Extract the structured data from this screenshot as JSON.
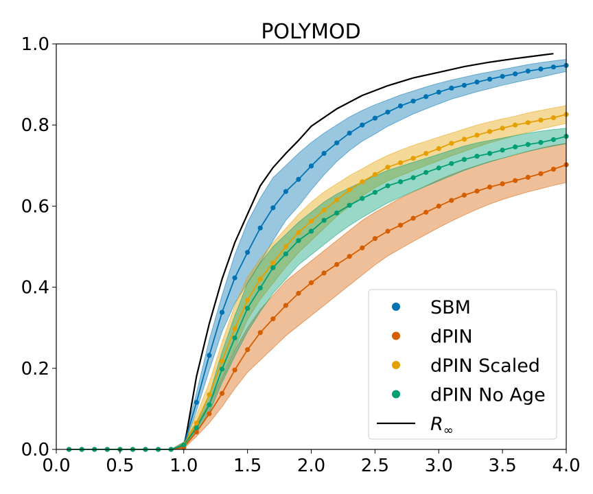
{
  "chart_data": {
    "type": "line",
    "title": "POLYMOD",
    "xlabel": "",
    "ylabel": "",
    "xlim": [
      0.0,
      4.0
    ],
    "ylim": [
      0.0,
      1.0
    ],
    "xticks": [
      "0.0",
      "0.5",
      "1.0",
      "1.5",
      "2.0",
      "2.5",
      "3.0",
      "3.5",
      "4.0"
    ],
    "yticks": [
      "0.0",
      "0.2",
      "0.4",
      "0.6",
      "0.8",
      "1.0"
    ],
    "grid": false,
    "legend_position": "lower-right",
    "x": [
      0.1,
      0.2,
      0.3,
      0.4,
      0.5,
      0.6,
      0.7,
      0.8,
      0.9,
      1.0,
      1.1,
      1.2,
      1.3,
      1.4,
      1.5,
      1.6,
      1.7,
      1.8,
      1.9,
      2.0,
      2.1,
      2.2,
      2.3,
      2.4,
      2.5,
      2.6,
      2.7,
      2.8,
      2.9,
      3.0,
      3.1,
      3.2,
      3.3,
      3.4,
      3.5,
      3.6,
      3.7,
      3.8,
      3.9,
      4.0
    ],
    "series": [
      {
        "name": "SBM",
        "color": "#0072b2",
        "values": [
          0,
          0,
          0,
          0,
          0,
          0,
          0,
          0,
          0,
          0.01,
          0.116,
          0.232,
          0.338,
          0.423,
          0.486,
          0.546,
          0.596,
          0.636,
          0.666,
          0.699,
          0.73,
          0.756,
          0.78,
          0.8,
          0.817,
          0.832,
          0.847,
          0.859,
          0.87,
          0.881,
          0.891,
          0.898,
          0.906,
          0.913,
          0.92,
          0.926,
          0.933,
          0.938,
          0.943,
          0.947
        ],
        "lower": [
          0,
          0,
          0,
          0,
          0,
          0,
          0,
          0,
          0,
          0.004,
          0.095,
          0.195,
          0.29,
          0.36,
          0.41,
          0.46,
          0.515,
          0.565,
          0.6,
          0.64,
          0.677,
          0.71,
          0.737,
          0.76,
          0.778,
          0.797,
          0.812,
          0.827,
          0.84,
          0.852,
          0.864,
          0.873,
          0.882,
          0.89,
          0.898,
          0.905,
          0.912,
          0.918,
          0.925,
          0.932
        ],
        "upper": [
          0,
          0,
          0,
          0,
          0,
          0,
          0,
          0,
          0,
          0.018,
          0.14,
          0.27,
          0.38,
          0.48,
          0.56,
          0.62,
          0.67,
          0.7,
          0.73,
          0.757,
          0.78,
          0.8,
          0.82,
          0.836,
          0.85,
          0.862,
          0.874,
          0.884,
          0.894,
          0.903,
          0.911,
          0.918,
          0.925,
          0.931,
          0.937,
          0.943,
          0.949,
          0.954,
          0.958,
          0.962
        ]
      },
      {
        "name": "dPIN",
        "color": "#d55e00",
        "values": [
          0,
          0,
          0,
          0,
          0,
          0,
          0,
          0,
          0,
          0.005,
          0.043,
          0.088,
          0.138,
          0.196,
          0.246,
          0.288,
          0.322,
          0.355,
          0.385,
          0.411,
          0.435,
          0.456,
          0.476,
          0.497,
          0.52,
          0.538,
          0.553,
          0.57,
          0.585,
          0.6,
          0.614,
          0.627,
          0.637,
          0.647,
          0.655,
          0.663,
          0.671,
          0.68,
          0.691,
          0.702
        ],
        "lower": [
          0,
          0,
          0,
          0,
          0,
          0,
          0,
          0,
          0,
          0.002,
          0.032,
          0.065,
          0.105,
          0.15,
          0.19,
          0.22,
          0.25,
          0.28,
          0.305,
          0.33,
          0.355,
          0.38,
          0.405,
          0.43,
          0.455,
          0.477,
          0.495,
          0.513,
          0.53,
          0.547,
          0.563,
          0.578,
          0.592,
          0.605,
          0.616,
          0.626,
          0.635,
          0.643,
          0.651,
          0.658
        ],
        "upper": [
          0,
          0,
          0,
          0,
          0,
          0,
          0,
          0,
          0,
          0.01,
          0.06,
          0.115,
          0.175,
          0.245,
          0.3,
          0.345,
          0.38,
          0.415,
          0.44,
          0.465,
          0.49,
          0.515,
          0.54,
          0.565,
          0.585,
          0.602,
          0.62,
          0.635,
          0.65,
          0.665,
          0.678,
          0.69,
          0.7,
          0.71,
          0.718,
          0.726,
          0.735,
          0.743,
          0.75,
          0.755
        ]
      },
      {
        "name": "dPIN Scaled",
        "color": "#e69f00",
        "values": [
          0,
          0,
          0,
          0,
          0,
          0,
          0,
          0,
          0,
          0.012,
          0.065,
          0.135,
          0.218,
          0.298,
          0.368,
          0.42,
          0.46,
          0.5,
          0.535,
          0.563,
          0.59,
          0.615,
          0.64,
          0.66,
          0.678,
          0.696,
          0.707,
          0.718,
          0.73,
          0.742,
          0.755,
          0.765,
          0.775,
          0.784,
          0.792,
          0.8,
          0.806,
          0.812,
          0.818,
          0.826
        ],
        "lower": [
          0,
          0,
          0,
          0,
          0,
          0,
          0,
          0,
          0,
          0.006,
          0.05,
          0.11,
          0.18,
          0.25,
          0.32,
          0.37,
          0.41,
          0.45,
          0.485,
          0.515,
          0.545,
          0.575,
          0.6,
          0.625,
          0.645,
          0.662,
          0.675,
          0.688,
          0.7,
          0.712,
          0.724,
          0.735,
          0.746,
          0.756,
          0.765,
          0.774,
          0.782,
          0.79,
          0.797,
          0.804
        ],
        "upper": [
          0,
          0,
          0,
          0,
          0,
          0,
          0,
          0,
          0,
          0.018,
          0.085,
          0.165,
          0.265,
          0.355,
          0.425,
          0.47,
          0.51,
          0.545,
          0.58,
          0.61,
          0.635,
          0.655,
          0.675,
          0.692,
          0.71,
          0.725,
          0.738,
          0.75,
          0.76,
          0.77,
          0.78,
          0.79,
          0.8,
          0.808,
          0.815,
          0.822,
          0.83,
          0.836,
          0.842,
          0.848
        ]
      },
      {
        "name": "dPIN No Age",
        "color": "#009e73",
        "values": [
          0,
          0,
          0,
          0,
          0,
          0,
          0,
          0,
          0,
          0.011,
          0.053,
          0.11,
          0.198,
          0.275,
          0.348,
          0.398,
          0.448,
          0.482,
          0.515,
          0.538,
          0.565,
          0.583,
          0.602,
          0.619,
          0.634,
          0.65,
          0.66,
          0.67,
          0.683,
          0.694,
          0.705,
          0.715,
          0.723,
          0.73,
          0.738,
          0.746,
          0.752,
          0.757,
          0.764,
          0.772
        ],
        "lower": [
          0,
          0,
          0,
          0,
          0,
          0,
          0,
          0,
          0,
          0.006,
          0.042,
          0.09,
          0.165,
          0.23,
          0.29,
          0.34,
          0.385,
          0.42,
          0.455,
          0.48,
          0.505,
          0.53,
          0.552,
          0.572,
          0.59,
          0.608,
          0.622,
          0.636,
          0.649,
          0.662,
          0.675,
          0.688,
          0.699,
          0.709,
          0.718,
          0.727,
          0.735,
          0.742,
          0.748,
          0.754
        ],
        "upper": [
          0,
          0,
          0,
          0,
          0,
          0,
          0,
          0,
          0,
          0.017,
          0.068,
          0.135,
          0.24,
          0.33,
          0.41,
          0.46,
          0.5,
          0.53,
          0.56,
          0.585,
          0.61,
          0.63,
          0.645,
          0.66,
          0.675,
          0.688,
          0.698,
          0.708,
          0.718,
          0.728,
          0.738,
          0.748,
          0.756,
          0.762,
          0.768,
          0.774,
          0.78,
          0.785,
          0.789,
          0.792
        ]
      }
    ],
    "reference": {
      "name": "R∞",
      "color": "#000000",
      "x": [
        1.0,
        1.1,
        1.2,
        1.3,
        1.4,
        1.5,
        1.6,
        1.7,
        1.8,
        1.9,
        2.0,
        2.2,
        2.4,
        2.6,
        2.8,
        3.0,
        3.2,
        3.4,
        3.6,
        3.8,
        3.9
      ],
      "values": [
        0.0,
        0.18,
        0.31,
        0.42,
        0.51,
        0.58,
        0.65,
        0.695,
        0.73,
        0.762,
        0.797,
        0.84,
        0.873,
        0.897,
        0.916,
        0.93,
        0.944,
        0.955,
        0.964,
        0.972,
        0.976
      ]
    },
    "legend": [
      {
        "label": "SBM",
        "color": "#0072b2",
        "marker": "dot"
      },
      {
        "label": "dPIN",
        "color": "#d55e00",
        "marker": "dot"
      },
      {
        "label": "dPIN Scaled",
        "color": "#e69f00",
        "marker": "dot"
      },
      {
        "label": "dPIN No Age",
        "color": "#009e73",
        "marker": "dot"
      },
      {
        "label": "R",
        "subscript": "∞",
        "color": "#000000",
        "marker": "line"
      }
    ]
  }
}
